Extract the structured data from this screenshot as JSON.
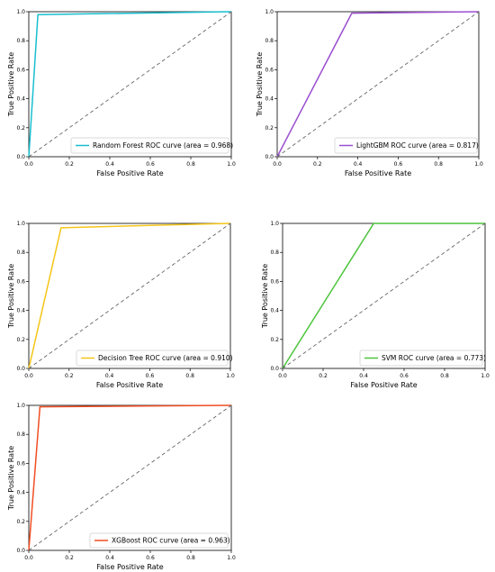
{
  "chart_data": [
    {
      "type": "line",
      "xlabel": "False Positive Rate",
      "ylabel": "True Positive Rate",
      "xlim": [
        0,
        1
      ],
      "ylim": [
        0,
        1
      ],
      "xticks": [
        "0.0",
        "0.2",
        "0.4",
        "0.6",
        "0.8",
        "1.0"
      ],
      "yticks": [
        "0.0",
        "0.2",
        "0.4",
        "0.6",
        "0.8",
        "1.0"
      ],
      "grid": false,
      "legend_position": "lower-right",
      "series": [
        {
          "name": "Random Forest ROC curve (area = 0.968)",
          "color": "#17becf",
          "x": [
            0,
            0.045,
            1
          ],
          "y": [
            0,
            0.98,
            1
          ]
        },
        {
          "name": "",
          "color": "#666666",
          "dashed": true,
          "x": [
            0,
            1
          ],
          "y": [
            0,
            1
          ]
        }
      ]
    },
    {
      "type": "line",
      "xlabel": "False Positive Rate",
      "ylabel": "True Positive Rate",
      "xlim": [
        0,
        1
      ],
      "ylim": [
        0,
        1
      ],
      "xticks": [
        "0.0",
        "0.2",
        "0.4",
        "0.6",
        "0.8",
        "1.0"
      ],
      "yticks": [
        "0.0",
        "0.2",
        "0.4",
        "0.6",
        "0.8",
        "1.0"
      ],
      "grid": false,
      "legend_position": "lower-right",
      "series": [
        {
          "name": "LightGBM ROC curve (area = 0.817)",
          "color": "#9b4fd0",
          "x": [
            0,
            0.37,
            1
          ],
          "y": [
            0,
            0.99,
            1
          ]
        },
        {
          "name": "",
          "color": "#666666",
          "dashed": true,
          "x": [
            0,
            1
          ],
          "y": [
            0,
            1
          ]
        }
      ]
    },
    {
      "type": "line",
      "xlabel": "False Positive Rate",
      "ylabel": "True Positive Rate",
      "xlim": [
        0,
        1
      ],
      "ylim": [
        0,
        1
      ],
      "xticks": [
        "0.0",
        "0.2",
        "0.4",
        "0.6",
        "0.8",
        "1.0"
      ],
      "yticks": [
        "0.0",
        "0.2",
        "0.4",
        "0.6",
        "0.8",
        "1.0"
      ],
      "grid": false,
      "legend_position": "lower-right",
      "series": [
        {
          "name": "Decision Tree ROC curve (area = 0.910)",
          "color": "#f5c518",
          "x": [
            0,
            0.16,
            1
          ],
          "y": [
            0,
            0.97,
            1
          ]
        },
        {
          "name": "",
          "color": "#666666",
          "dashed": true,
          "x": [
            0,
            1
          ],
          "y": [
            0,
            1
          ]
        }
      ]
    },
    {
      "type": "line",
      "xlabel": "False Positive Rate",
      "ylabel": "True Positive Rate",
      "xlim": [
        0,
        1
      ],
      "ylim": [
        0,
        1
      ],
      "xticks": [
        "0.0",
        "0.2",
        "0.4",
        "0.6",
        "0.8",
        "1.0"
      ],
      "yticks": [
        "0.0",
        "0.2",
        "0.4",
        "0.6",
        "0.8",
        "1.0"
      ],
      "grid": false,
      "legend_position": "lower-right",
      "series": [
        {
          "name": "SVM ROC curve (area = 0.773)",
          "color": "#4cc43c",
          "x": [
            0,
            0.45,
            1
          ],
          "y": [
            0,
            1.0,
            1
          ]
        },
        {
          "name": "",
          "color": "#666666",
          "dashed": true,
          "x": [
            0,
            1
          ],
          "y": [
            0,
            1
          ]
        }
      ]
    },
    {
      "type": "line",
      "xlabel": "False Positive Rate",
      "ylabel": "True Positive Rate",
      "xlim": [
        0,
        1
      ],
      "ylim": [
        0,
        1
      ],
      "xticks": [
        "0.0",
        "0.2",
        "0.4",
        "0.6",
        "0.8",
        "1.0"
      ],
      "yticks": [
        "0.0",
        "0.2",
        "0.4",
        "0.6",
        "0.8",
        "1.0"
      ],
      "grid": false,
      "legend_position": "lower-right",
      "series": [
        {
          "name": "XGBoost ROC curve (area = 0.963)",
          "color": "#f04e23",
          "x": [
            0,
            0.055,
            1
          ],
          "y": [
            0,
            0.99,
            1
          ]
        },
        {
          "name": "",
          "color": "#666666",
          "dashed": true,
          "x": [
            0,
            1
          ],
          "y": [
            0,
            1
          ]
        }
      ]
    }
  ]
}
